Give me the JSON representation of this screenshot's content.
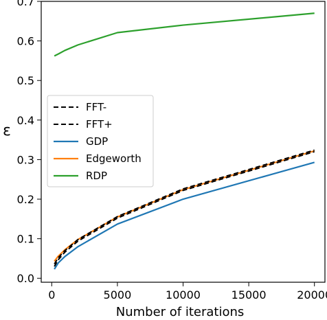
{
  "chart_data": {
    "type": "line",
    "title": "",
    "xlabel": "Number of iterations",
    "ylabel": "ε",
    "xlim": [
      -800,
      20800
    ],
    "ylim": [
      -0.01,
      0.7
    ],
    "xticks": [
      0,
      5000,
      10000,
      15000,
      20000
    ],
    "yticks": [
      0.0,
      0.1,
      0.2,
      0.3,
      0.4,
      0.5,
      0.6,
      0.7
    ],
    "ytick_labels": [
      "0.0",
      "0.1",
      "0.2",
      "0.3",
      "0.4",
      "0.5",
      "0.6",
      "0.7"
    ],
    "grid": false,
    "legend_position": "center-left",
    "x": [
      200,
      500,
      1000,
      2000,
      5000,
      10000,
      20000
    ],
    "series": [
      {
        "name": "FFT-",
        "color": "#000000",
        "dash": "dashed",
        "values": [
          0.03,
          0.047,
          0.066,
          0.094,
          0.152,
          0.222,
          0.32
        ]
      },
      {
        "name": "FFT+",
        "color": "#000000",
        "dash": "dashed",
        "values": [
          0.036,
          0.052,
          0.07,
          0.098,
          0.156,
          0.226,
          0.324
        ]
      },
      {
        "name": "GDP",
        "color": "#1f77b4",
        "dash": "solid",
        "values": [
          0.023,
          0.039,
          0.055,
          0.08,
          0.137,
          0.2,
          0.293
        ]
      },
      {
        "name": "Edgeworth",
        "color": "#ff7f0e",
        "dash": "solid",
        "values": [
          0.043,
          0.056,
          0.072,
          0.098,
          0.155,
          0.224,
          0.322
        ]
      },
      {
        "name": "RDP",
        "color": "#2ca02c",
        "dash": "solid",
        "values": [
          0.562,
          0.567,
          0.576,
          0.59,
          0.621,
          0.64,
          0.67
        ]
      }
    ],
    "legend_order": [
      "FFT-",
      "FFT+",
      "GDP",
      "Edgeworth",
      "RDP"
    ]
  }
}
